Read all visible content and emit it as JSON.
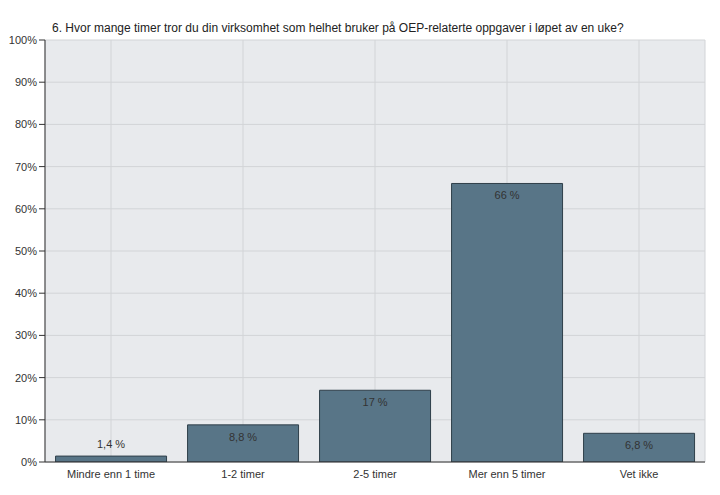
{
  "chart_data": {
    "type": "bar",
    "title": "6. Hvor mange timer tror du din virksomhet som helhet bruker på OEP-relaterte oppgaver i løpet av en uke?",
    "categories": [
      "Mindre enn 1 time",
      "1-2 timer",
      "2-5 timer",
      "Mer enn 5 timer",
      "Vet ikke"
    ],
    "values": [
      1.4,
      8.8,
      17,
      66,
      6.8
    ],
    "value_labels": [
      "1,4 %",
      "8,8 %",
      "17 %",
      "66 %",
      "6,8 %"
    ],
    "data_labels": true,
    "color": "#587587",
    "ylim": [
      0,
      100
    ],
    "yticks": [
      {
        "value": 0,
        "label": "0%"
      },
      {
        "value": 10,
        "label": "10%"
      },
      {
        "value": 20,
        "label": "20%"
      },
      {
        "value": 30,
        "label": "30%"
      },
      {
        "value": 40,
        "label": "40%"
      },
      {
        "value": 50,
        "label": "50%"
      },
      {
        "value": 60,
        "label": "60%"
      },
      {
        "value": 70,
        "label": "70%"
      },
      {
        "value": 80,
        "label": "80%"
      },
      {
        "value": 90,
        "label": "90%"
      },
      {
        "value": 100,
        "label": "100%"
      }
    ],
    "grid": true
  }
}
